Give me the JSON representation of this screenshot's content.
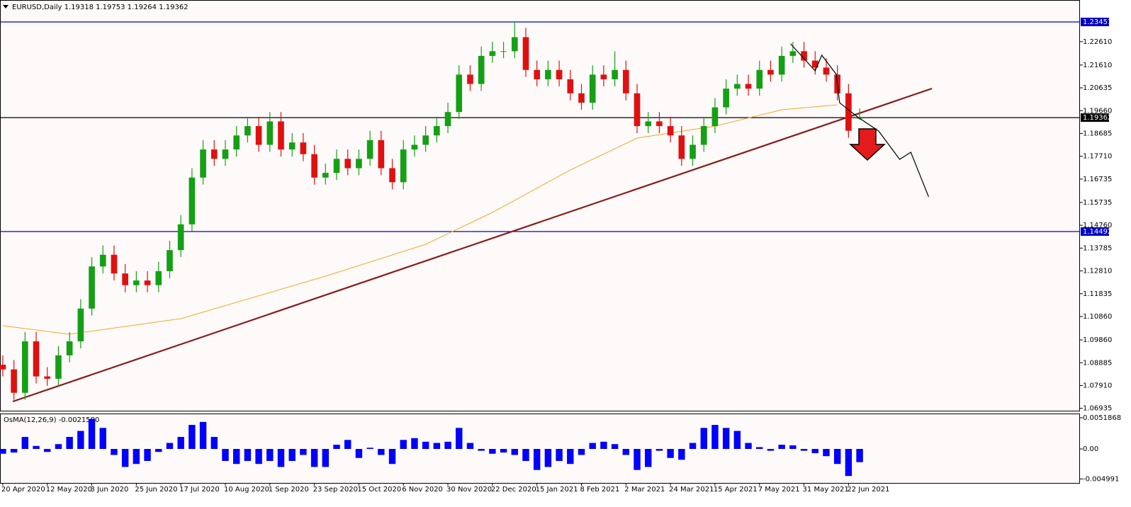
{
  "chart_data": [
    {
      "type": "candlestick",
      "title": "EURUSD,Daily  1.19318 1.19753 1.19264 1.19362",
      "open": [
        1.088,
        1.086,
        1.076,
        1.098,
        1.083,
        1.082,
        1.092,
        1.098,
        1.112,
        1.13,
        1.135,
        1.127,
        1.122,
        1.124,
        1.122,
        1.128,
        1.137,
        1.148,
        1.168,
        1.18,
        1.176,
        1.18,
        1.186,
        1.19,
        1.182,
        1.192,
        1.18,
        1.183,
        1.178,
        1.168,
        1.17,
        1.176,
        1.172,
        1.176,
        1.184,
        1.172,
        1.166,
        1.18,
        1.182,
        1.186,
        1.19,
        1.196,
        1.212,
        1.208,
        1.22,
        1.222,
        1.222,
        1.228,
        1.214,
        1.21,
        1.214,
        1.21,
        1.204,
        1.2,
        1.212,
        1.21,
        1.214,
        1.204,
        1.19,
        1.192,
        1.19,
        1.186,
        1.176,
        1.182,
        1.19,
        1.198,
        1.206,
        1.208,
        1.206,
        1.214,
        1.212,
        1.22,
        1.222,
        1.218,
        1.215,
        1.212,
        1.204,
        1.19318
      ],
      "high": [
        1.092,
        1.09,
        1.102,
        1.102,
        1.087,
        1.096,
        1.102,
        1.116,
        1.134,
        1.139,
        1.139,
        1.131,
        1.128,
        1.128,
        1.132,
        1.141,
        1.152,
        1.172,
        1.184,
        1.184,
        1.184,
        1.19,
        1.194,
        1.194,
        1.196,
        1.196,
        1.187,
        1.187,
        1.182,
        1.174,
        1.18,
        1.18,
        1.18,
        1.188,
        1.188,
        1.176,
        1.184,
        1.186,
        1.19,
        1.194,
        1.2,
        1.216,
        1.216,
        1.224,
        1.226,
        1.226,
        1.2345,
        1.232,
        1.218,
        1.218,
        1.218,
        1.214,
        1.208,
        1.216,
        1.216,
        1.222,
        1.218,
        1.208,
        1.196,
        1.196,
        1.194,
        1.19,
        1.186,
        1.194,
        1.202,
        1.21,
        1.212,
        1.212,
        1.218,
        1.218,
        1.224,
        1.226,
        1.226,
        1.222,
        1.219,
        1.216,
        1.208,
        1.19753
      ],
      "low": [
        1.083,
        1.073,
        1.073,
        1.08,
        1.079,
        1.079,
        1.089,
        1.095,
        1.109,
        1.127,
        1.124,
        1.119,
        1.119,
        1.119,
        1.119,
        1.125,
        1.134,
        1.145,
        1.165,
        1.173,
        1.173,
        1.177,
        1.183,
        1.179,
        1.179,
        1.177,
        1.177,
        1.175,
        1.165,
        1.165,
        1.167,
        1.169,
        1.169,
        1.173,
        1.169,
        1.163,
        1.163,
        1.177,
        1.179,
        1.183,
        1.187,
        1.193,
        1.205,
        1.205,
        1.217,
        1.219,
        1.219,
        1.211,
        1.207,
        1.207,
        1.207,
        1.201,
        1.197,
        1.197,
        1.207,
        1.207,
        1.201,
        1.187,
        1.187,
        1.187,
        1.183,
        1.173,
        1.173,
        1.179,
        1.187,
        1.195,
        1.203,
        1.203,
        1.203,
        1.209,
        1.209,
        1.217,
        1.215,
        1.212,
        1.209,
        1.201,
        1.185,
        1.19264
      ],
      "close": [
        1.086,
        1.076,
        1.098,
        1.083,
        1.082,
        1.092,
        1.098,
        1.112,
        1.13,
        1.135,
        1.127,
        1.122,
        1.124,
        1.122,
        1.128,
        1.137,
        1.148,
        1.168,
        1.18,
        1.176,
        1.18,
        1.186,
        1.19,
        1.182,
        1.192,
        1.18,
        1.183,
        1.178,
        1.168,
        1.17,
        1.176,
        1.172,
        1.176,
        1.184,
        1.172,
        1.166,
        1.18,
        1.182,
        1.186,
        1.19,
        1.196,
        1.212,
        1.208,
        1.22,
        1.222,
        1.222,
        1.228,
        1.214,
        1.21,
        1.214,
        1.21,
        1.204,
        1.2,
        1.212,
        1.21,
        1.214,
        1.204,
        1.19,
        1.192,
        1.19,
        1.186,
        1.176,
        1.182,
        1.19,
        1.198,
        1.206,
        1.208,
        1.206,
        1.214,
        1.212,
        1.22,
        1.222,
        1.218,
        1.215,
        1.212,
        1.204,
        1.188,
        1.19362
      ],
      "colors": {
        "up": "#14a014",
        "down": "#e01010"
      },
      "xlim": [
        -0.25,
        96.8
      ],
      "ylim": [
        1.06835,
        1.24389
      ],
      "yticks": [
        {
          "value": 1.2261,
          "label": "1.22610"
        },
        {
          "value": 1.2161,
          "label": "1.21610"
        },
        1.20635,
        {
          "value": 1.1966,
          "label": "1.19660"
        },
        1.18685,
        {
          "value": 1.1771,
          "label": "1.17710"
        },
        1.16735,
        1.15735,
        {
          "value": 1.1476,
          "label": "1.14760"
        },
        1.13785,
        {
          "value": 1.1281,
          "label": "1.12810"
        },
        1.11835,
        {
          "value": 1.1086,
          "label": "1.10860"
        },
        {
          "value": 1.0986,
          "label": "1.09860"
        },
        1.08885,
        {
          "value": 1.0791,
          "label": "1.07910"
        },
        1.06935
      ],
      "xticks": [
        {
          "value": 0,
          "label": "20 Apr 2020"
        },
        {
          "value": 4,
          "label": "12 May 2020"
        },
        {
          "value": 8,
          "label": "3 Jun 2020"
        },
        {
          "value": 12,
          "label": "25 Jun 2020"
        },
        {
          "value": 16,
          "label": "17 Jul 2020"
        },
        {
          "value": 20,
          "label": "10 Aug 2020"
        },
        {
          "value": 24,
          "label": "1 Sep 2020"
        },
        {
          "value": 28,
          "label": "23 Sep 2020"
        },
        {
          "value": 32,
          "label": "15 Oct 2020"
        },
        {
          "value": 36,
          "label": "6 Nov 2020"
        },
        {
          "value": 40,
          "label": "30 Nov 2020"
        },
        {
          "value": 44,
          "label": "22 Dec 2020"
        },
        {
          "value": 48,
          "label": "15 Jan 2021"
        },
        {
          "value": 52,
          "label": "8 Feb 2021"
        },
        {
          "value": 56,
          "label": "2 Mar 2021"
        },
        {
          "value": 60,
          "label": "24 Mar 2021"
        },
        {
          "value": 64,
          "label": "15 Apr 2021"
        },
        {
          "value": 68,
          "label": "7 May 2021"
        },
        {
          "value": 72,
          "label": "31 May 2021"
        },
        {
          "value": 76,
          "label": "22 Jun 2021"
        }
      ],
      "levels": [
        {
          "value": 1.23451,
          "color": "#0000c8"
        },
        {
          "value": 1.19362,
          "color": "#000000"
        },
        {
          "value": 1.14492,
          "color": "#0000c8"
        }
      ],
      "ma": {
        "color": "#f5a623",
        "x": [
          0,
          6,
          16,
          29,
          38,
          44,
          51,
          57,
          64,
          70,
          75
        ],
        "values": [
          1.10467,
          1.10104,
          1.1077,
          1.12585,
          1.13947,
          1.15309,
          1.17125,
          1.18487,
          1.18998,
          1.19698,
          1.1991
        ]
      },
      "trendline": {
        "color": "#8b1a1a",
        "x": [
          0.9,
          83.5
        ],
        "values": [
          1.07228,
          1.20606
        ]
      },
      "forecast": {
        "color": "#000000",
        "x": [
          70.8,
          73,
          73.6,
          74.9,
          75.2,
          76.8,
          78.7,
          80.6,
          81.6,
          83.2
        ],
        "values": [
          1.22513,
          1.21363,
          1.22029,
          1.21211,
          1.19999,
          1.19395,
          1.1879,
          1.17579,
          1.17882,
          1.15975
        ]
      }
    },
    {
      "type": "bar",
      "title": "OsMA(12,26,9) -0.0021580",
      "color": "#0000ff",
      "values": [
        -0.0008,
        -0.0006,
        0.002,
        0.0005,
        -0.0005,
        0.0008,
        0.002,
        0.003,
        0.005,
        0.0035,
        -0.001,
        -0.003,
        -0.0025,
        -0.002,
        -0.0005,
        0.001,
        0.002,
        0.004,
        0.0045,
        0.002,
        -0.002,
        -0.0025,
        -0.002,
        -0.0025,
        -0.002,
        -0.003,
        -0.002,
        -0.001,
        -0.003,
        -0.003,
        0.0007,
        0.0015,
        -0.0015,
        0.0002,
        -0.001,
        -0.0025,
        0.0015,
        0.0018,
        0.0012,
        0.001,
        0.0012,
        0.0035,
        0.001,
        -0.0003,
        -0.0008,
        -0.0006,
        -0.001,
        -0.002,
        -0.0035,
        -0.003,
        -0.002,
        -0.0025,
        -0.001,
        0.001,
        0.0012,
        0.0008,
        -0.001,
        -0.0035,
        -0.003,
        -0.0003,
        -0.0015,
        -0.0018,
        0.001,
        0.0035,
        0.004,
        0.0035,
        0.003,
        0.001,
        0.0003,
        -0.0003,
        0.0007,
        0.0006,
        -0.0003,
        -0.0007,
        -0.0012,
        -0.0025,
        -0.0045,
        -0.0022
      ],
      "xlim": [
        -0.25,
        96.8
      ],
      "ylim": [
        -0.005658,
        0.005776
      ],
      "yticks": [
        0.0051868,
        {
          "value": 0,
          "label": "0.00"
        },
        -0.004991
      ]
    }
  ]
}
